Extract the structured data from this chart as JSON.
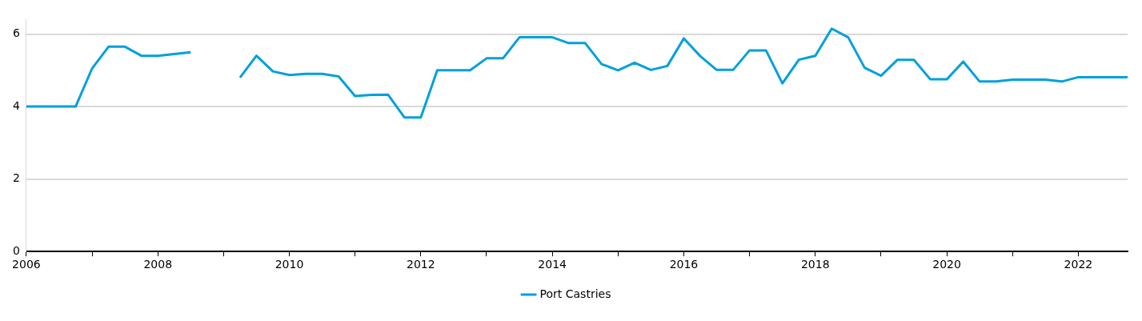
{
  "chart_data": {
    "type": "line",
    "x": [
      2006,
      2006.25,
      2006.5,
      2006.75,
      2007,
      2007.25,
      2007.5,
      2007.75,
      2008,
      2008.25,
      2008.5,
      2008.75,
      2009,
      2009.25,
      2009.5,
      2009.75,
      2010,
      2010.25,
      2010.5,
      2010.75,
      2011,
      2011.25,
      2011.5,
      2011.75,
      2012,
      2012.25,
      2012.5,
      2012.75,
      2013,
      2013.25,
      2013.5,
      2013.75,
      2014,
      2014.25,
      2014.5,
      2014.75,
      2015,
      2015.25,
      2015.5,
      2015.75,
      2016,
      2016.25,
      2016.5,
      2016.75,
      2017,
      2017.25,
      2017.5,
      2017.75,
      2018,
      2018.25,
      2018.5,
      2018.75,
      2019,
      2019.25,
      2019.5,
      2019.75,
      2020,
      2020.25,
      2020.5,
      2020.75,
      2021,
      2021.25,
      2021.5,
      2021.75,
      2022,
      2022.25,
      2022.5,
      2022.75
    ],
    "series": [
      {
        "name": "Port Castries",
        "color": "#00a0dc",
        "values": [
          4.0,
          4.0,
          4.0,
          4.0,
          5.05,
          5.65,
          5.65,
          5.4,
          5.4,
          5.45,
          5.5,
          null,
          null,
          4.8,
          5.4,
          4.97,
          4.87,
          4.9,
          4.9,
          4.83,
          4.29,
          4.32,
          4.33,
          3.7,
          3.7,
          5.0,
          5.0,
          5.0,
          5.33,
          5.33,
          5.91,
          5.91,
          5.91,
          5.75,
          5.75,
          5.17,
          5.0,
          5.21,
          5.01,
          5.12,
          5.88,
          5.39,
          5.01,
          5.01,
          5.55,
          5.55,
          4.64,
          5.29,
          5.4,
          6.15,
          5.91,
          5.07,
          4.85,
          5.29,
          5.29,
          4.75,
          4.75,
          5.24,
          4.69,
          4.69,
          4.74,
          4.74,
          4.74,
          4.69,
          4.81,
          4.81,
          4.81,
          4.81
        ]
      }
    ],
    "xlim": [
      2006,
      2022.75
    ],
    "xticks": [
      2006,
      {
        "value": 2007,
        "label": null
      },
      2008,
      {
        "value": 2009,
        "label": null
      },
      2010,
      {
        "value": 2011,
        "label": null
      },
      2012,
      {
        "value": 2013,
        "label": null
      },
      2014,
      {
        "value": 2015,
        "label": null
      },
      2016,
      {
        "value": 2017,
        "label": null
      },
      2018,
      {
        "value": 2019,
        "label": null
      },
      2020,
      {
        "value": 2021,
        "label": null
      },
      2022
    ],
    "ylim": [
      0,
      6.4
    ],
    "yticks": [
      0,
      2,
      4,
      6
    ],
    "grid": "y",
    "legend": "bottom",
    "line_style": "solid",
    "marker": "none"
  }
}
